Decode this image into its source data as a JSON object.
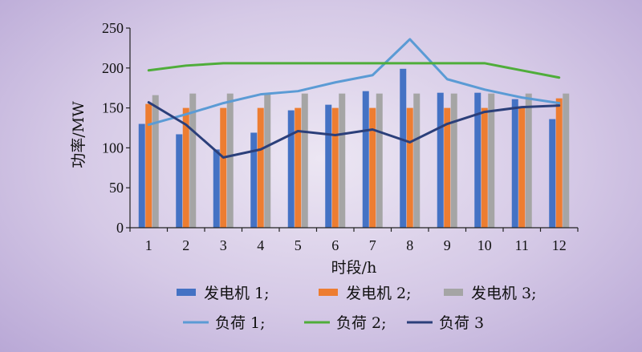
{
  "chart_data": {
    "type": "bar",
    "categories": [
      "1",
      "2",
      "3",
      "4",
      "5",
      "6",
      "7",
      "8",
      "9",
      "10",
      "11",
      "12"
    ],
    "xlabel": "时段/h",
    "ylabel": "功率/MW",
    "ylim": [
      0,
      250
    ],
    "yticks": [
      0,
      50,
      100,
      150,
      200,
      250
    ],
    "grid": false,
    "bar_series": [
      {
        "name": "发电机 1",
        "legend": "发电机 1;",
        "color": "#4472c4",
        "values": [
          130,
          117,
          98,
          119,
          147,
          154,
          171,
          199,
          169,
          169,
          161,
          136
        ]
      },
      {
        "name": "发电机 2",
        "legend": "发电机 2;",
        "color": "#ed7d31",
        "values": [
          155,
          150,
          150,
          150,
          150,
          150,
          150,
          150,
          150,
          150,
          150,
          162
        ]
      },
      {
        "name": "发电机 3",
        "legend": "发电机 3;",
        "color": "#a5a5a5",
        "values": [
          166,
          168,
          168,
          168,
          168,
          168,
          168,
          168,
          168,
          168,
          168,
          168
        ]
      }
    ],
    "line_series": [
      {
        "name": "负荷 1",
        "legend": "负荷 1;",
        "color": "#5b9bd5",
        "values": [
          129,
          142,
          156,
          167,
          171,
          182,
          191,
          236,
          186,
          173,
          163,
          156
        ]
      },
      {
        "name": "负荷 2",
        "legend": "负荷 2;",
        "color": "#4fad3a",
        "values": [
          197,
          203,
          206,
          206,
          206,
          206,
          206,
          206,
          206,
          206,
          197,
          188
        ]
      },
      {
        "name": "负荷 3",
        "legend": "负荷 3",
        "color": "#2b3f7a",
        "values": [
          157,
          129,
          88,
          98,
          121,
          116,
          123,
          107,
          130,
          145,
          151,
          153
        ]
      }
    ],
    "legend_position": "bottom"
  }
}
